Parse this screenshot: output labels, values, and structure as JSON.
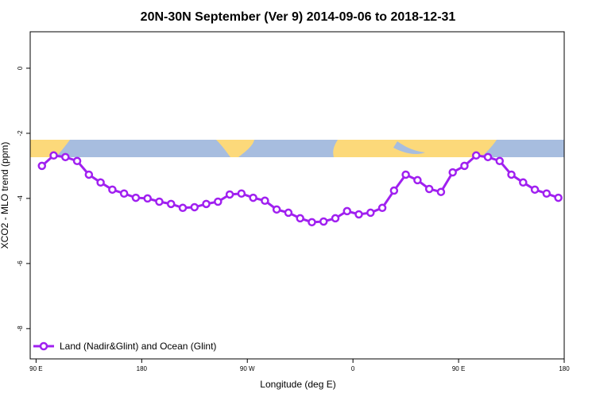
{
  "chart_data": {
    "type": "line",
    "title": "20N-30N September (Ver 9)   2014-09-06 to 2018-12-31",
    "xlabel": "Longitude (deg E)",
    "ylabel": "XCO2 - MLO trend (ppm)",
    "x": [
      95,
      105,
      115,
      125,
      135,
      145,
      155,
      165,
      175,
      185,
      195,
      205,
      215,
      225,
      235,
      245,
      255,
      265,
      275,
      285,
      295,
      305,
      315,
      325,
      335,
      345,
      355,
      365,
      375,
      385,
      395,
      405,
      415,
      425,
      435,
      445,
      455,
      465,
      475,
      485,
      495,
      505,
      515,
      525,
      535
    ],
    "series": [
      {
        "name": "Land (Nadir&Glint) and Ocean (Glint)",
        "color": "#a020f0",
        "values": [
          -3.0,
          -2.68,
          -2.73,
          -2.85,
          -3.27,
          -3.51,
          -3.73,
          -3.85,
          -3.98,
          -4.0,
          -4.1,
          -4.17,
          -4.29,
          -4.27,
          -4.17,
          -4.1,
          -3.88,
          -3.85,
          -3.98,
          -4.07,
          -4.34,
          -4.44,
          -4.61,
          -4.73,
          -4.71,
          -4.61,
          -4.39,
          -4.49,
          -4.44,
          -4.29,
          -3.76,
          -3.27,
          -3.44,
          -3.71,
          -3.8,
          -3.2,
          -3.0,
          -2.68,
          -2.73,
          -2.85,
          -3.27,
          -3.51,
          -3.73,
          -3.85,
          -3.98
        ]
      }
    ],
    "xlim": [
      85,
      540
    ],
    "ylim": [
      -8.93,
      1.12
    ],
    "xticks": [
      {
        "value": 90,
        "label": "90 E"
      },
      180,
      {
        "value": 270,
        "label": "90 W"
      },
      {
        "value": 360,
        "label": "0"
      },
      {
        "value": 450,
        "label": "90 E"
      },
      {
        "value": 540,
        "label": "180"
      }
    ],
    "yticks": [
      -8,
      -6,
      -4,
      -2,
      0
    ],
    "legend": "bottom-left"
  }
}
